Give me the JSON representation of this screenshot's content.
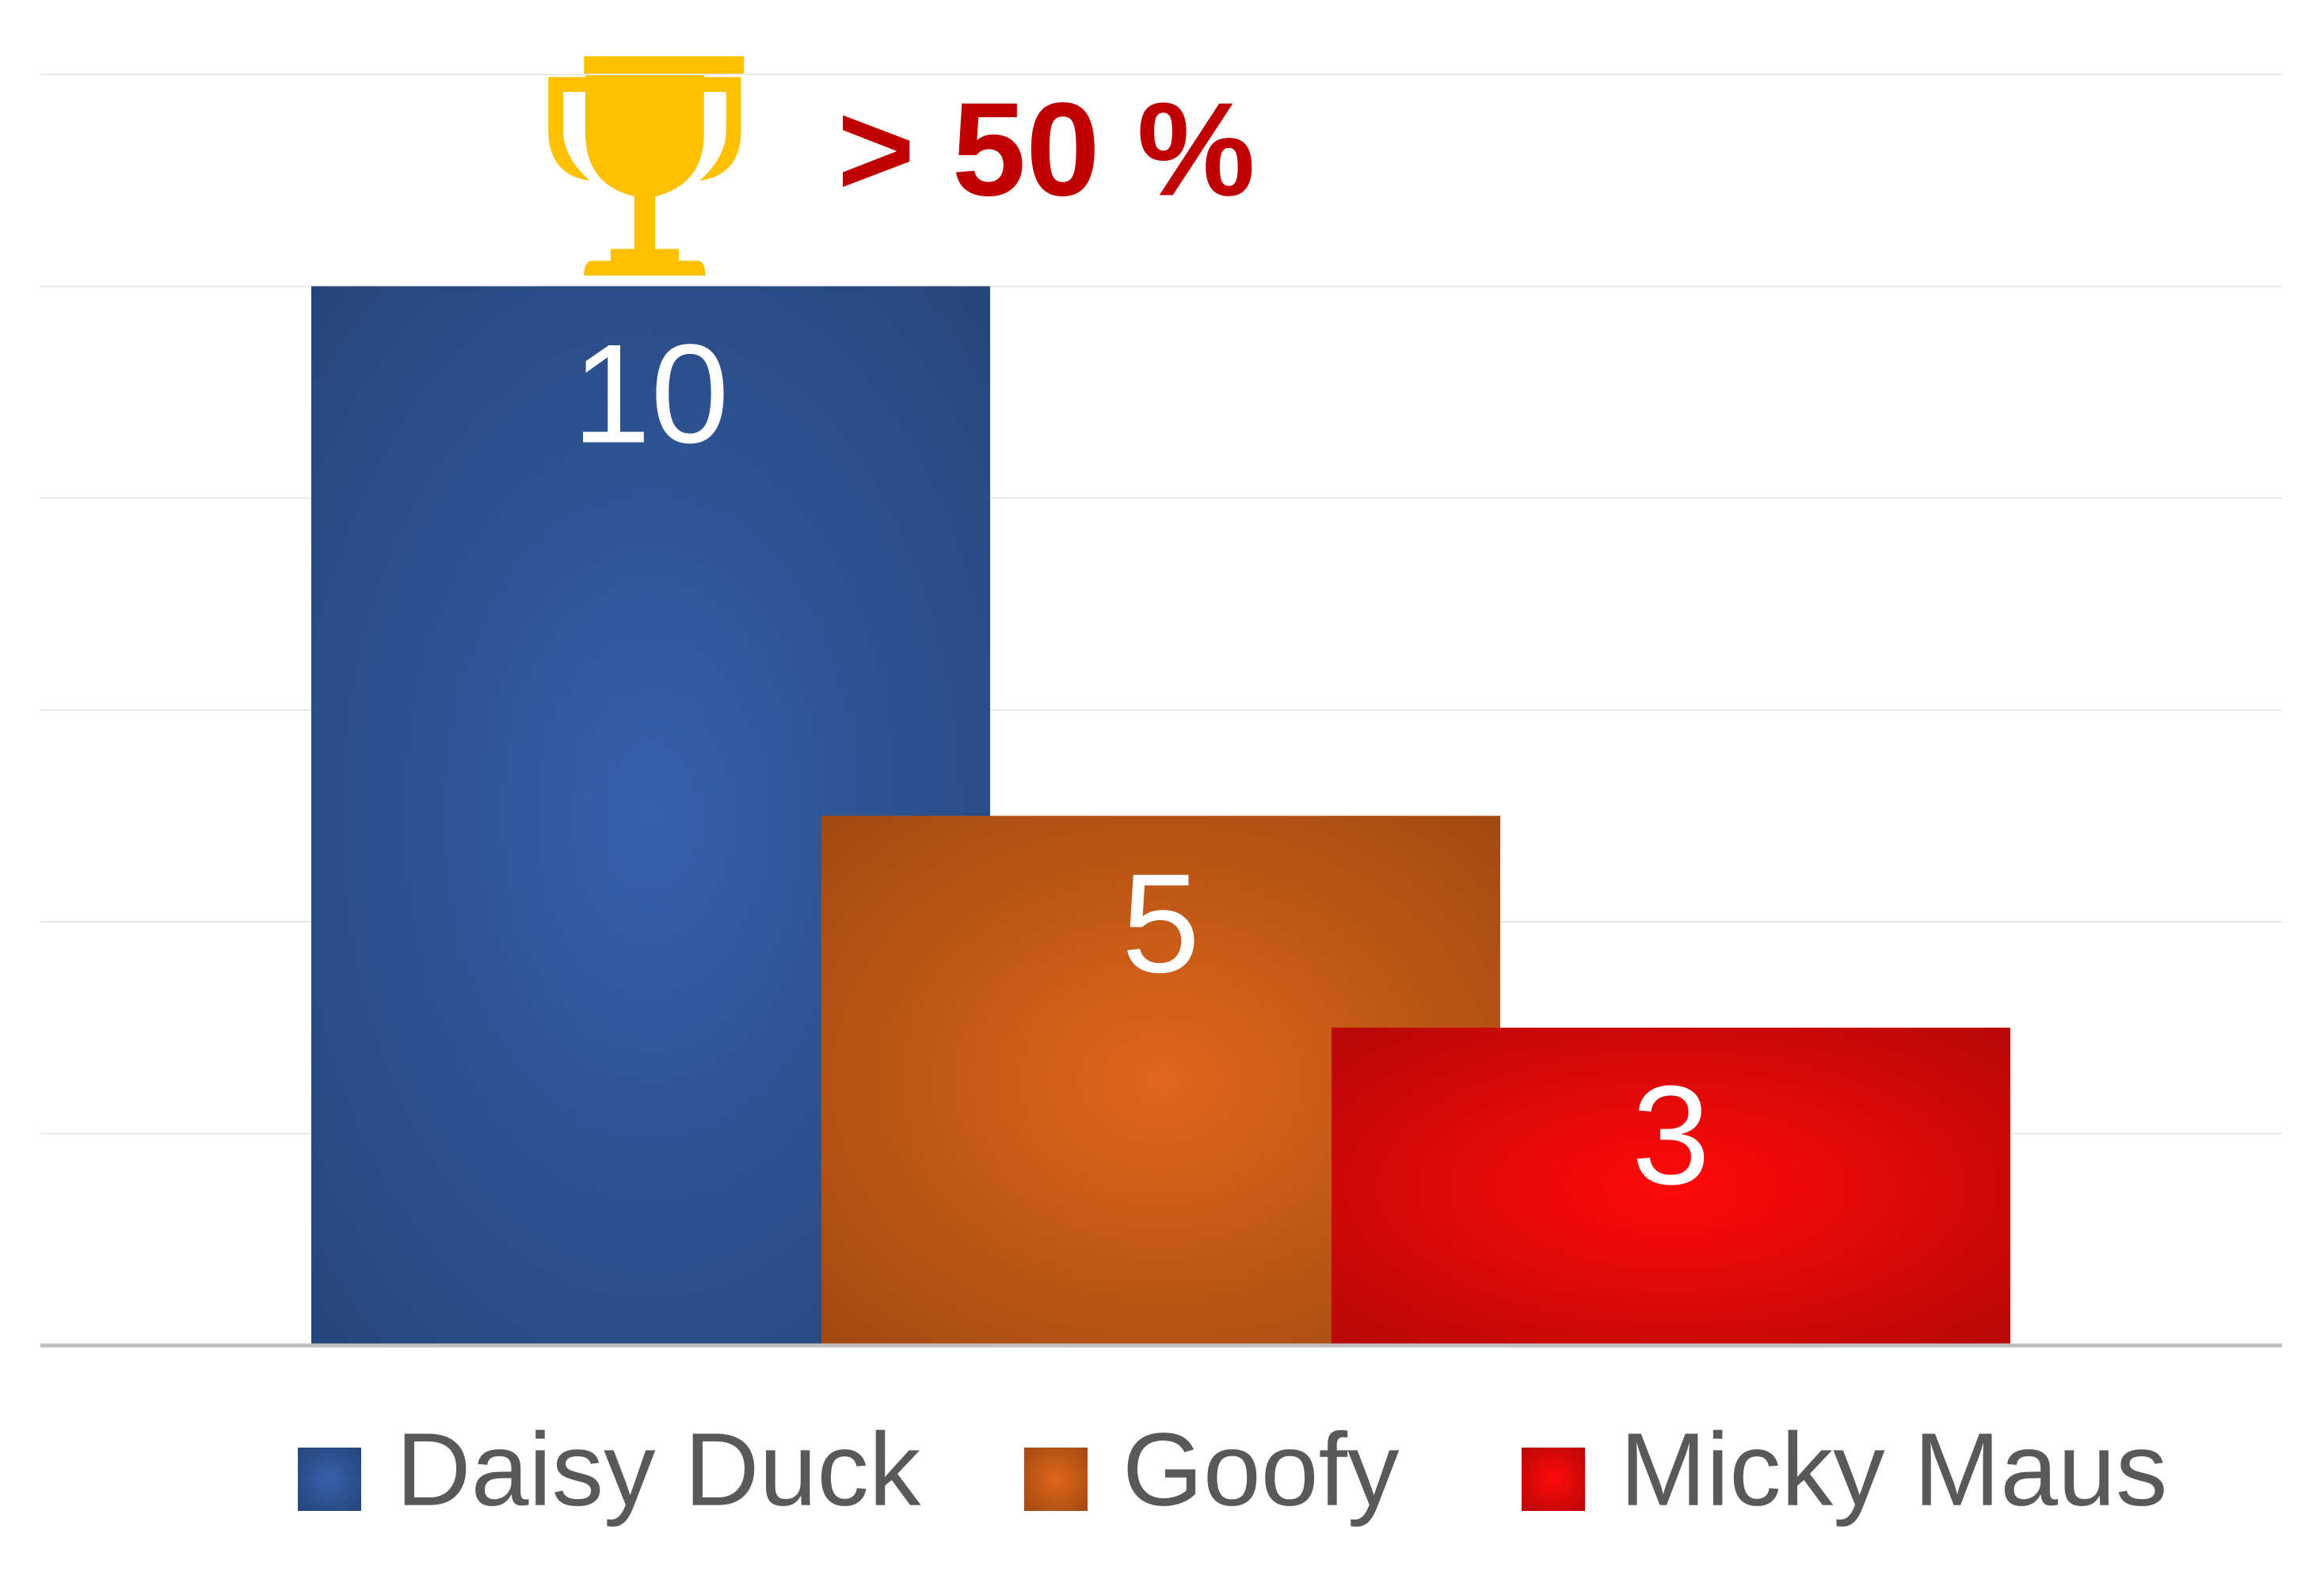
{
  "chart_data": {
    "type": "bar",
    "annotation": "> 50 %",
    "series": [
      {
        "name": "Daisy Duck",
        "color": "#3560aa",
        "values": [
          10
        ]
      },
      {
        "name": "Goofy",
        "color": "#e0661a",
        "values": [
          5
        ]
      },
      {
        "name": "Micky Maus",
        "color": "#ff0a0a",
        "values": [
          3
        ]
      }
    ],
    "ylim": [
      0,
      12
    ],
    "yticks": [
      0,
      2,
      4,
      6,
      8,
      10,
      12
    ],
    "grid": true,
    "legend": "bottom"
  }
}
